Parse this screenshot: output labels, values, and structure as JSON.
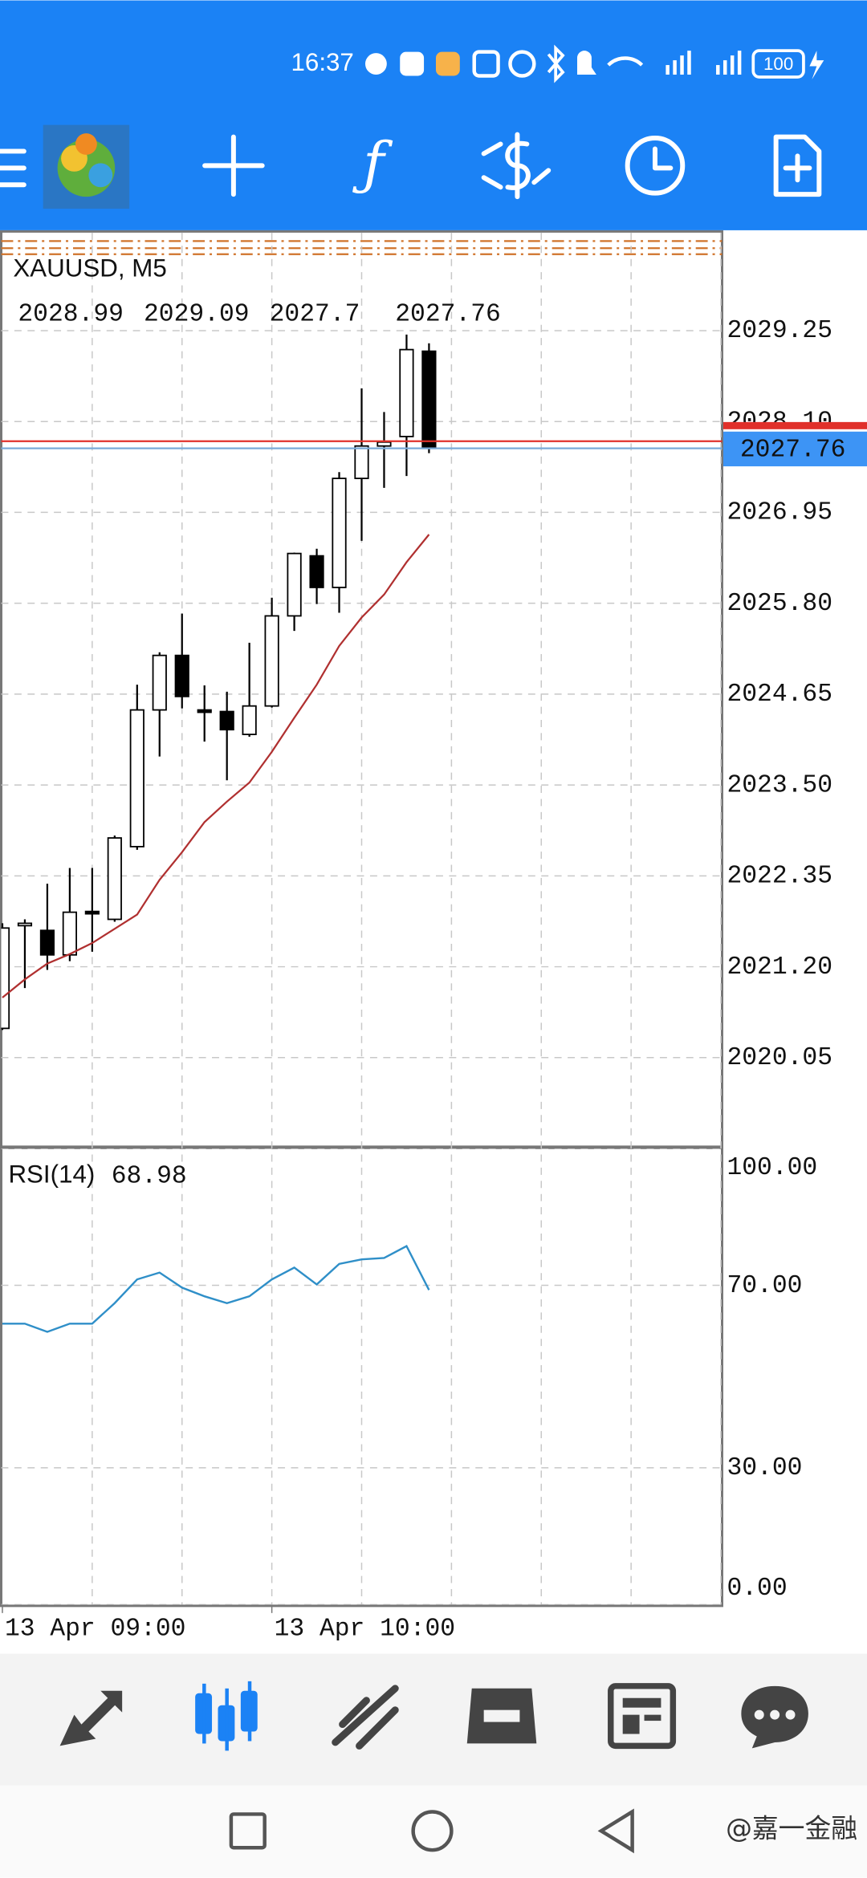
{
  "status_bar": {
    "time": "16:37",
    "battery": "100"
  },
  "watermark": "@嘉一金融",
  "chart_data": [
    {
      "type": "candlestick",
      "title": "XAUUSD, M5",
      "categories": [
        "13 Apr 09:00",
        null,
        null,
        null,
        null,
        null,
        null,
        null,
        null,
        null,
        null,
        null,
        "13 Apr 10:00",
        null,
        null,
        null,
        null,
        null,
        null,
        null
      ],
      "open": [
        2020.42,
        2021.72,
        2021.66,
        2021.35,
        2021.9,
        2021.8,
        2022.72,
        2024.45,
        2025.14,
        2024.45,
        2024.43,
        2024.14,
        2024.5,
        2025.64,
        2026.4,
        2026.0,
        2027.38,
        2027.79,
        2027.91,
        2028.99
      ],
      "high": [
        2021.75,
        2021.8,
        2022.25,
        2022.45,
        2022.45,
        2022.86,
        2024.77,
        2025.18,
        2025.67,
        2024.76,
        2024.68,
        2025.3,
        2025.87,
        2026.44,
        2026.49,
        2027.46,
        2028.52,
        2028.22,
        2029.2,
        2029.09
      ],
      "low": [
        2020.4,
        2020.93,
        2021.16,
        2021.27,
        2021.39,
        2021.77,
        2022.68,
        2023.86,
        2024.47,
        2024.05,
        2023.56,
        2024.11,
        2024.48,
        2025.45,
        2025.79,
        2025.68,
        2026.59,
        2027.26,
        2027.41,
        2027.7
      ],
      "close": [
        2021.69,
        2021.75,
        2021.35,
        2021.89,
        2021.87,
        2022.83,
        2024.45,
        2025.14,
        2024.62,
        2024.43,
        2024.2,
        2024.5,
        2025.64,
        2026.43,
        2026.0,
        2027.38,
        2027.79,
        2027.84,
        2029.01,
        2027.76
      ],
      "overlay_values": [
        2020.81,
        2021.04,
        2021.24,
        2021.36,
        2021.5,
        2021.68,
        2021.86,
        2022.3,
        2022.65,
        2023.03,
        2023.29,
        2023.53,
        2023.92,
        2024.35,
        2024.77,
        2025.26,
        2025.62,
        2025.91,
        2026.32,
        2026.67
      ],
      "overlay_color": "#b03030",
      "ylim": [
        2018.93,
        2030.49
      ],
      "yticks": [
        2029.25,
        {
          "value": 2028.1,
          "label": "2028.10"
        },
        2026.95,
        {
          "value": 2025.8,
          "label": "2025.80"
        },
        2024.65,
        {
          "value": 2023.5,
          "label": "2023.50"
        },
        2022.35,
        {
          "value": 2021.2,
          "label": "2021.20"
        },
        2020.05
      ],
      "grid": true
    },
    {
      "type": "line",
      "title": "RSI(14)",
      "series": [
        {
          "color": "#2f8fc8",
          "values": [
            61.6,
            61.6,
            59.8,
            61.6,
            61.6,
            66.1,
            71.3,
            72.8,
            69.5,
            67.6,
            66.1,
            67.6,
            71.3,
            73.9,
            70.2,
            74.7,
            75.7,
            76.0,
            78.6,
            68.98
          ]
        }
      ],
      "ylim": [
        0,
        100
      ],
      "yticks": [
        {
          "value": 100,
          "label": "100.00"
        },
        {
          "value": 70,
          "label": "70.00"
        },
        {
          "value": 30,
          "label": "30.00"
        },
        {
          "value": 0,
          "label": "0.00"
        }
      ],
      "grid": true
    }
  ]
}
